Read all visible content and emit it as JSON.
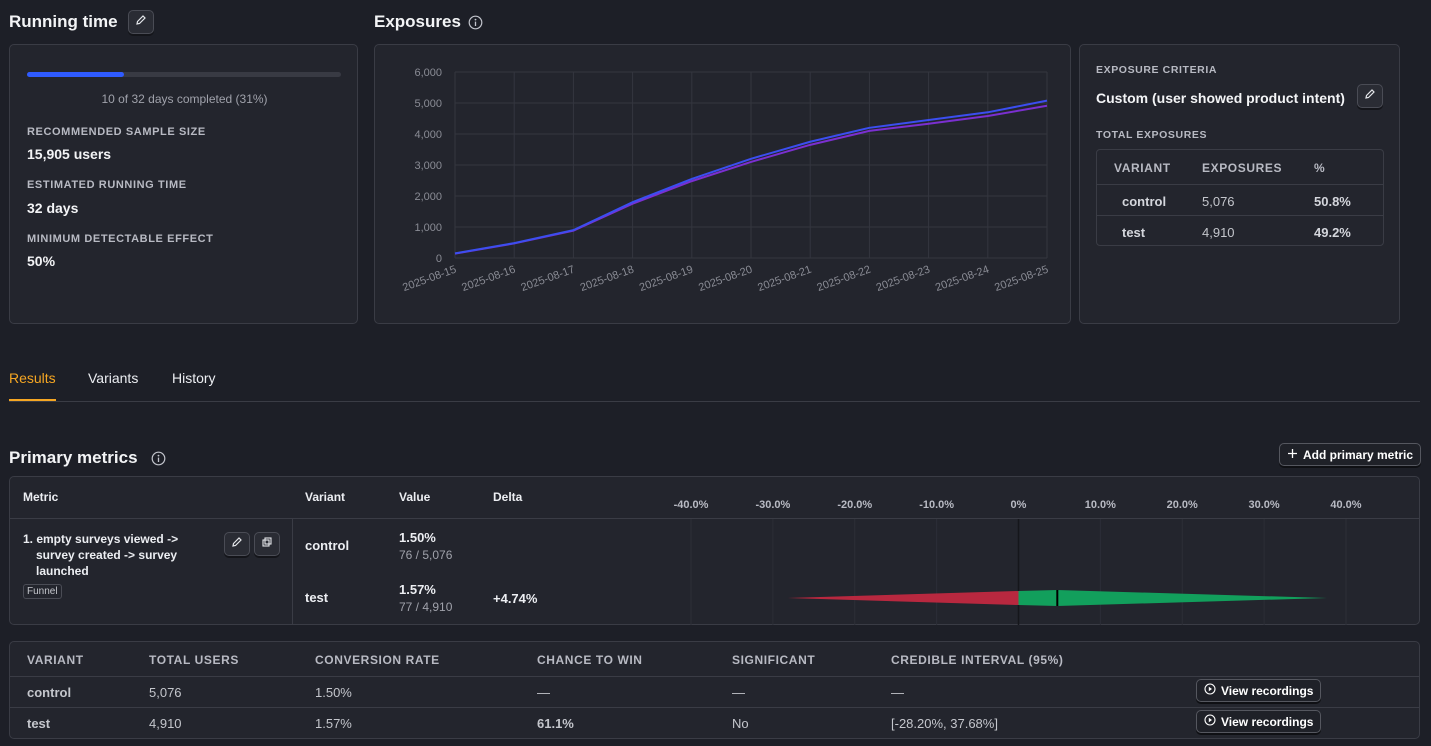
{
  "running_time": {
    "title": "Running time",
    "progress_fraction": 0.31,
    "progress_text": "10 of 32 days completed (31%)",
    "fields": [
      {
        "label": "RECOMMENDED SAMPLE SIZE",
        "value": "15,905 users"
      },
      {
        "label": "ESTIMATED RUNNING TIME",
        "value": "32 days"
      },
      {
        "label": "MINIMUM DETECTABLE EFFECT",
        "value": "50%"
      }
    ]
  },
  "exposures": {
    "title": "Exposures",
    "info_icon": "info-circle-icon"
  },
  "chart_data": {
    "type": "line",
    "x": [
      "2025-08-15",
      "2025-08-16",
      "2025-08-17",
      "2025-08-18",
      "2025-08-19",
      "2025-08-20",
      "2025-08-21",
      "2025-08-22",
      "2025-08-23",
      "2025-08-24",
      "2025-08-25"
    ],
    "series": [
      {
        "values": [
          150,
          480,
          900,
          1800,
          2550,
          3200,
          3750,
          4200,
          4450,
          4700,
          5076
        ],
        "color": "#3b4ef0"
      },
      {
        "values": [
          140,
          470,
          880,
          1750,
          2480,
          3100,
          3650,
          4100,
          4330,
          4580,
          4910
        ],
        "color": "#7b2fd0"
      }
    ],
    "y_ticks": [
      "6,000",
      "5,000",
      "4,000",
      "3,000",
      "2,000",
      "1,000",
      "0"
    ],
    "ylim": [
      0,
      6000
    ],
    "grid": true
  },
  "exposure_criteria": {
    "caption": "EXPOSURE CRITERIA",
    "value": "Custom (user showed product intent)",
    "total_caption": "TOTAL EXPOSURES",
    "headers": [
      "VARIANT",
      "EXPOSURES",
      "%"
    ],
    "rows": [
      {
        "variant": "control",
        "exposures": "5,076",
        "pct": "50.8%"
      },
      {
        "variant": "test",
        "exposures": "4,910",
        "pct": "49.2%"
      }
    ]
  },
  "tabs": [
    {
      "label": "Results",
      "active": true
    },
    {
      "label": "Variants",
      "active": false
    },
    {
      "label": "History",
      "active": false
    }
  ],
  "primary_metrics": {
    "title": "Primary metrics",
    "add_button": "Add primary metric",
    "headers": {
      "metric": "Metric",
      "variant": "Variant",
      "value": "Value",
      "delta": "Delta"
    },
    "axis_ticks": [
      "-40.0%",
      "-30.0%",
      "-20.0%",
      "-10.0%",
      "0%",
      "10.0%",
      "20.0%",
      "30.0%",
      "40.0%"
    ],
    "metric": {
      "name": "1. empty surveys viewed -> survey created -> survey launched",
      "name_lines": [
        "1. empty surveys viewed ->",
        "survey created -> survey",
        "launched"
      ],
      "tag": "Funnel"
    },
    "rows": [
      {
        "variant": "control",
        "value": "1.50%",
        "sub": "76 / 5,076",
        "delta": ""
      },
      {
        "variant": "test",
        "value": "1.57%",
        "sub": "77 / 4,910",
        "delta": "+4.74%"
      }
    ],
    "interval": {
      "low": -28.2,
      "high": 37.68,
      "mean": 4.74
    }
  },
  "results_table": {
    "headers": [
      "VARIANT",
      "TOTAL USERS",
      "CONVERSION RATE",
      "CHANCE TO WIN",
      "SIGNIFICANT",
      "CREDIBLE INTERVAL (95%)"
    ],
    "rows": [
      {
        "variant": "control",
        "users": "5,076",
        "rate": "1.50%",
        "chance": "—",
        "significant": "—",
        "interval": "—",
        "button": "View recordings"
      },
      {
        "variant": "test",
        "users": "4,910",
        "rate": "1.57%",
        "chance": "61.1%",
        "significant": "No",
        "interval": "[-28.20%, 37.68%]",
        "button": "View recordings"
      }
    ]
  },
  "colors": {
    "accent": "#f5a623",
    "progress": "#2f5bff",
    "negative": "#b8283f",
    "positive": "#129f5c"
  }
}
